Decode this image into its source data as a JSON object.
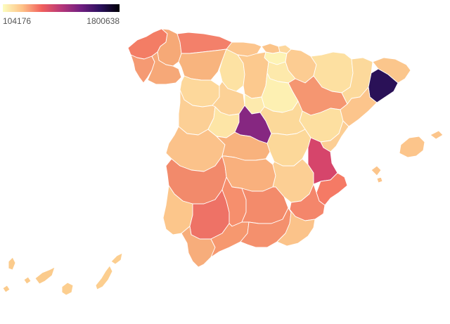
{
  "legend": {
    "min_label": "104176",
    "max_label": "1800638",
    "gradient": [
      "#fcfdbf",
      "#fec287",
      "#f1605d",
      "#b73779",
      "#721f81",
      "#2c115f",
      "#000004"
    ]
  },
  "regions": [
    {
      "id": "a-coruna",
      "value": 720000,
      "color": "#f37d65"
    },
    {
      "id": "lugo",
      "value": 460000,
      "color": "#f6a977"
    },
    {
      "id": "asturias",
      "value": 660000,
      "color": "#f3806a"
    },
    {
      "id": "cantabria",
      "value": 330000,
      "color": "#fcc58d"
    },
    {
      "id": "pontevedra",
      "value": 520000,
      "color": "#f59a73"
    },
    {
      "id": "ourense",
      "value": 470000,
      "color": "#f6a878"
    },
    {
      "id": "leon",
      "value": 410000,
      "color": "#f8b47e"
    },
    {
      "id": "palencia",
      "value": 180000,
      "color": "#fde2a3"
    },
    {
      "id": "burgos",
      "value": 300000,
      "color": "#fcc98e"
    },
    {
      "id": "bizkaia",
      "value": 340000,
      "color": "#fbc48a"
    },
    {
      "id": "gipuzkoa",
      "value": 250000,
      "color": "#fdd79c"
    },
    {
      "id": "araba",
      "value": 104176,
      "color": "#fdf3b5"
    },
    {
      "id": "navarra",
      "value": 300000,
      "color": "#fccc92"
    },
    {
      "id": "la-rioja",
      "value": 160000,
      "color": "#fde9ab"
    },
    {
      "id": "huesca",
      "value": 200000,
      "color": "#fde0a1"
    },
    {
      "id": "zaragoza",
      "value": 560000,
      "color": "#f59671"
    },
    {
      "id": "teruel",
      "value": 180000,
      "color": "#fddfa0"
    },
    {
      "id": "lleida",
      "value": 230000,
      "color": "#fcd99b"
    },
    {
      "id": "girona",
      "value": 350000,
      "color": "#fbc68c"
    },
    {
      "id": "barcelona",
      "value": 1800638,
      "color": "#2a1157"
    },
    {
      "id": "tarragona",
      "value": 340000,
      "color": "#fcc58c"
    },
    {
      "id": "zamora",
      "value": 220000,
      "color": "#fdd89b"
    },
    {
      "id": "valladolid",
      "value": 270000,
      "color": "#fcd196"
    },
    {
      "id": "soria",
      "value": 120000,
      "color": "#fdf0b2"
    },
    {
      "id": "salamanca",
      "value": 280000,
      "color": "#fccf95"
    },
    {
      "id": "avila",
      "value": 170000,
      "color": "#fde5a6"
    },
    {
      "id": "segovia",
      "value": 150000,
      "color": "#fdeaad"
    },
    {
      "id": "madrid",
      "value": 1300000,
      "color": "#862781"
    },
    {
      "id": "guadalajara",
      "value": 230000,
      "color": "#fcd99a"
    },
    {
      "id": "caceres",
      "value": 350000,
      "color": "#fbc28a"
    },
    {
      "id": "toledo",
      "value": 420000,
      "color": "#f8b27d"
    },
    {
      "id": "cuenca",
      "value": 200000,
      "color": "#fcd899"
    },
    {
      "id": "castellon",
      "value": 290000,
      "color": "#fcce94"
    },
    {
      "id": "valencia",
      "value": 1050000,
      "color": "#d6456b"
    },
    {
      "id": "badajoz",
      "value": 620000,
      "color": "#f28a6b"
    },
    {
      "id": "ciudad-real",
      "value": 410000,
      "color": "#f9b07d"
    },
    {
      "id": "albacete",
      "value": 280000,
      "color": "#fccf94"
    },
    {
      "id": "alicante",
      "value": 740000,
      "color": "#f57a65"
    },
    {
      "id": "huelva",
      "value": 310000,
      "color": "#fcc68b"
    },
    {
      "id": "sevilla",
      "value": 790000,
      "color": "#ee7266"
    },
    {
      "id": "cordoba",
      "value": 560000,
      "color": "#f68f6d"
    },
    {
      "id": "jaen",
      "value": 590000,
      "color": "#f38b6b"
    },
    {
      "id": "murcia",
      "value": 680000,
      "color": "#f4866b"
    },
    {
      "id": "cadiz",
      "value": 420000,
      "color": "#f7ad7b"
    },
    {
      "id": "malaga",
      "value": 560000,
      "color": "#f6986f"
    },
    {
      "id": "granada",
      "value": 590000,
      "color": "#f4906d"
    },
    {
      "id": "almeria",
      "value": 330000,
      "color": "#fbc38a"
    },
    {
      "id": "mallorca",
      "value": 330000,
      "color": "#fcc58b"
    },
    {
      "id": "menorca",
      "value": 330000,
      "color": "#fcc58b"
    },
    {
      "id": "ibiza",
      "value": 330000,
      "color": "#fcc58b"
    },
    {
      "id": "formentera",
      "value": 330000,
      "color": "#fcc58b"
    },
    {
      "id": "tenerife",
      "value": 330000,
      "color": "#fbcb8c"
    },
    {
      "id": "la-palma",
      "value": 330000,
      "color": "#fbcb8c"
    },
    {
      "id": "la-gomera",
      "value": 330000,
      "color": "#fbcb8c"
    },
    {
      "id": "el-hierro",
      "value": 330000,
      "color": "#fbcb8c"
    },
    {
      "id": "gran-canaria",
      "value": 330000,
      "color": "#fcce8f"
    },
    {
      "id": "fuerteventura",
      "value": 330000,
      "color": "#fcce8f"
    },
    {
      "id": "lanzarote",
      "value": 330000,
      "color": "#fcce8f"
    }
  ]
}
